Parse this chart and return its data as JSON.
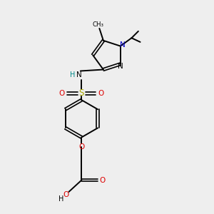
{
  "bg_color": "#eeeeee",
  "black": "#000000",
  "blue": "#0000cc",
  "red": "#dd0000",
  "sulfur_color": "#aaaa00",
  "teal": "#008888",
  "figsize": [
    3.0,
    3.0
  ],
  "dpi": 100,
  "xlim": [
    0,
    10
  ],
  "ylim": [
    0,
    10
  ]
}
